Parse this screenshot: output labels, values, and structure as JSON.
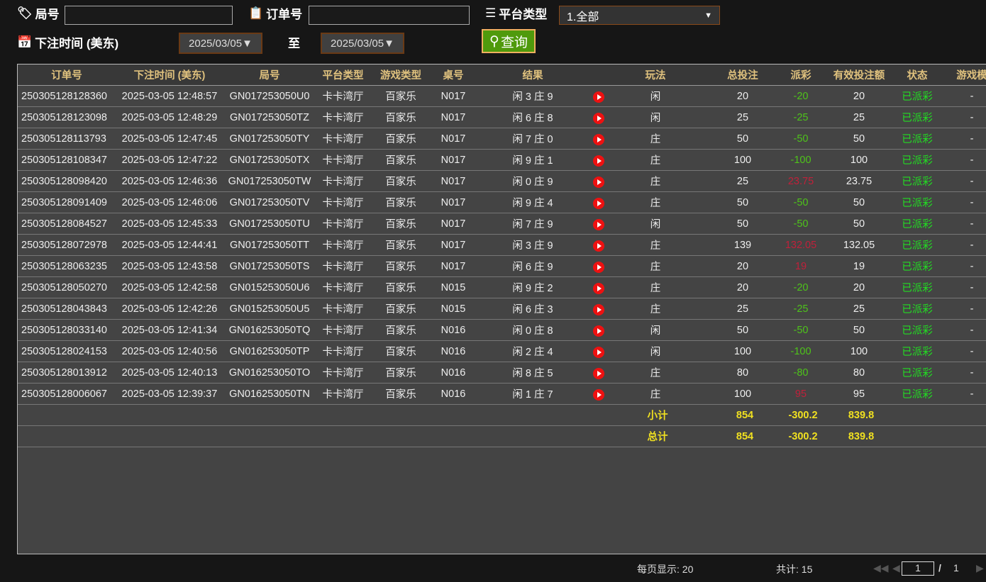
{
  "filters": {
    "round_label": "局号",
    "round_value": "",
    "order_label": "订单号",
    "order_value": "",
    "platform_label": "平台类型",
    "platform_value": "1.全部",
    "time_label": "下注时间 (美东)",
    "date_from": "2025/03/05",
    "to_label": "至",
    "date_to": "2025/03/05",
    "query_label": "查询"
  },
  "table": {
    "headers": [
      "订单号",
      "下注时间 (美东)",
      "局号",
      "平台类型",
      "游戏类型",
      "桌号",
      "结果",
      "",
      "玩法",
      "总投注",
      "派彩",
      "有效投注额",
      "状态",
      "游戏模"
    ],
    "rows": [
      [
        "250305128128360",
        "2025-03-05 12:48:57",
        "GN017253050U0",
        "卡卡湾厅",
        "百家乐",
        "N017",
        "闲 3 庄 9",
        "闲",
        "20",
        "-20",
        "20",
        "已派彩",
        "-"
      ],
      [
        "250305128123098",
        "2025-03-05 12:48:29",
        "GN017253050TZ",
        "卡卡湾厅",
        "百家乐",
        "N017",
        "闲 6 庄 8",
        "闲",
        "25",
        "-25",
        "25",
        "已派彩",
        "-"
      ],
      [
        "250305128113793",
        "2025-03-05 12:47:45",
        "GN017253050TY",
        "卡卡湾厅",
        "百家乐",
        "N017",
        "闲 7 庄 0",
        "庄",
        "50",
        "-50",
        "50",
        "已派彩",
        "-"
      ],
      [
        "250305128108347",
        "2025-03-05 12:47:22",
        "GN017253050TX",
        "卡卡湾厅",
        "百家乐",
        "N017",
        "闲 9 庄 1",
        "庄",
        "100",
        "-100",
        "100",
        "已派彩",
        "-"
      ],
      [
        "250305128098420",
        "2025-03-05 12:46:36",
        "GN017253050TW",
        "卡卡湾厅",
        "百家乐",
        "N017",
        "闲 0 庄 9",
        "庄",
        "25",
        "23.75",
        "23.75",
        "已派彩",
        "-"
      ],
      [
        "250305128091409",
        "2025-03-05 12:46:06",
        "GN017253050TV",
        "卡卡湾厅",
        "百家乐",
        "N017",
        "闲 9 庄 4",
        "庄",
        "50",
        "-50",
        "50",
        "已派彩",
        "-"
      ],
      [
        "250305128084527",
        "2025-03-05 12:45:33",
        "GN017253050TU",
        "卡卡湾厅",
        "百家乐",
        "N017",
        "闲 7 庄 9",
        "闲",
        "50",
        "-50",
        "50",
        "已派彩",
        "-"
      ],
      [
        "250305128072978",
        "2025-03-05 12:44:41",
        "GN017253050TT",
        "卡卡湾厅",
        "百家乐",
        "N017",
        "闲 3 庄 9",
        "庄",
        "139",
        "132.05",
        "132.05",
        "已派彩",
        "-"
      ],
      [
        "250305128063235",
        "2025-03-05 12:43:58",
        "GN017253050TS",
        "卡卡湾厅",
        "百家乐",
        "N017",
        "闲 6 庄 9",
        "庄",
        "20",
        "19",
        "19",
        "已派彩",
        "-"
      ],
      [
        "250305128050270",
        "2025-03-05 12:42:58",
        "GN015253050U6",
        "卡卡湾厅",
        "百家乐",
        "N015",
        "闲 9 庄 2",
        "庄",
        "20",
        "-20",
        "20",
        "已派彩",
        "-"
      ],
      [
        "250305128043843",
        "2025-03-05 12:42:26",
        "GN015253050U5",
        "卡卡湾厅",
        "百家乐",
        "N015",
        "闲 6 庄 3",
        "庄",
        "25",
        "-25",
        "25",
        "已派彩",
        "-"
      ],
      [
        "250305128033140",
        "2025-03-05 12:41:34",
        "GN016253050TQ",
        "卡卡湾厅",
        "百家乐",
        "N016",
        "闲 0 庄 8",
        "闲",
        "50",
        "-50",
        "50",
        "已派彩",
        "-"
      ],
      [
        "250305128024153",
        "2025-03-05 12:40:56",
        "GN016253050TP",
        "卡卡湾厅",
        "百家乐",
        "N016",
        "闲 2 庄 4",
        "闲",
        "100",
        "-100",
        "100",
        "已派彩",
        "-"
      ],
      [
        "250305128013912",
        "2025-03-05 12:40:13",
        "GN016253050TO",
        "卡卡湾厅",
        "百家乐",
        "N016",
        "闲 8 庄 5",
        "庄",
        "80",
        "-80",
        "80",
        "已派彩",
        "-"
      ],
      [
        "250305128006067",
        "2025-03-05 12:39:37",
        "GN016253050TN",
        "卡卡湾厅",
        "百家乐",
        "N016",
        "闲 1 庄 7",
        "庄",
        "100",
        "95",
        "95",
        "已派彩",
        "-"
      ]
    ],
    "subtotal": {
      "label": "小计",
      "bet": "854",
      "payout": "-300.2",
      "valid": "839.8"
    },
    "total": {
      "label": "总计",
      "bet": "854",
      "payout": "-300.2",
      "valid": "839.8"
    }
  },
  "footer": {
    "per_page": "每页显示: 20",
    "count": "共计: 15",
    "page": "1",
    "pages_sep": "/",
    "pages": "1"
  },
  "colors": {
    "loss": "#4ec31a",
    "win": "#c0203a",
    "status": "#22dd22",
    "header": "#e0c27e"
  }
}
